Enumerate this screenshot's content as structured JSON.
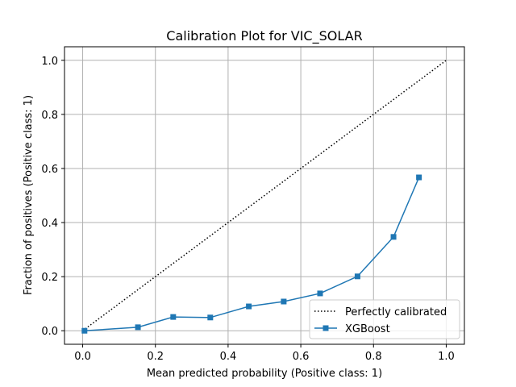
{
  "chart_data": {
    "type": "line",
    "title": "Calibration Plot for VIC_SOLAR",
    "xlabel": "Mean predicted probability (Positive class: 1)",
    "ylabel": "Fraction of positives (Positive class: 1)",
    "xlim": [
      -0.05,
      1.05
    ],
    "ylim": [
      -0.05,
      1.05
    ],
    "xticks": [
      "0.0",
      "0.2",
      "0.4",
      "0.6",
      "0.8",
      "1.0"
    ],
    "yticks": [
      "0.0",
      "0.2",
      "0.4",
      "0.6",
      "0.8",
      "1.0"
    ],
    "grid": true,
    "legend_position": "bottom-right",
    "series": [
      {
        "name": "Perfectly calibrated",
        "style": "dotted",
        "color": "#000000",
        "x": [
          0.0,
          1.0
        ],
        "y": [
          0.0,
          1.0
        ]
      },
      {
        "name": "XGBoost",
        "style": "solid",
        "marker": "square",
        "color": "#1f77b4",
        "x": [
          0.005,
          0.152,
          0.249,
          0.351,
          0.457,
          0.553,
          0.653,
          0.756,
          0.855,
          0.925
        ],
        "y": [
          0.0,
          0.013,
          0.051,
          0.049,
          0.09,
          0.108,
          0.138,
          0.201,
          0.347,
          0.567
        ]
      }
    ]
  }
}
